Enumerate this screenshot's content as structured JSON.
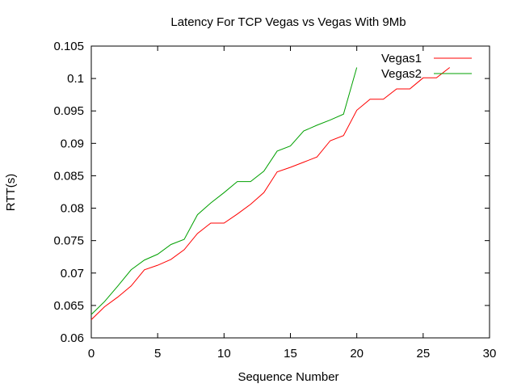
{
  "chart_data": {
    "type": "line",
    "title": "Latency For TCP Vegas vs Vegas With 9Mb",
    "xlabel": "Sequence Number",
    "ylabel": "RTT(s)",
    "xlim": [
      0,
      30
    ],
    "ylim": [
      0.06,
      0.105
    ],
    "xticks": [
      0,
      5,
      10,
      15,
      20,
      25,
      30
    ],
    "yticks": [
      0.06,
      0.065,
      0.07,
      0.075,
      0.08,
      0.085,
      0.09,
      0.095,
      0.1,
      0.105
    ],
    "xtick_labels": [
      "0",
      "5",
      "10",
      "15",
      "20",
      "25",
      "30"
    ],
    "ytick_labels": [
      "0.06",
      "0.065",
      "0.07",
      "0.075",
      "0.08",
      "0.085",
      "0.09",
      "0.095",
      "0.1",
      "0.105"
    ],
    "grid": false,
    "legend_position": "top-right",
    "series": [
      {
        "name": "Vegas1",
        "color": "#ff0000",
        "x": [
          0,
          1,
          2,
          3,
          4,
          5,
          6,
          7,
          8,
          9,
          10,
          11,
          12,
          13,
          14,
          15,
          16,
          17,
          18,
          19,
          20,
          21,
          22,
          23,
          24,
          25,
          26,
          27
        ],
        "y": [
          0.0628,
          0.0648,
          0.0663,
          0.068,
          0.0705,
          0.0712,
          0.0721,
          0.0736,
          0.0761,
          0.0777,
          0.0777,
          0.0791,
          0.0806,
          0.0824,
          0.0856,
          0.0863,
          0.0871,
          0.0879,
          0.0904,
          0.0912,
          0.0951,
          0.0968,
          0.0968,
          0.0984,
          0.0984,
          0.1001,
          0.1001,
          0.1017
        ]
      },
      {
        "name": "Vegas2",
        "color": "#00a000",
        "x": [
          0,
          1,
          2,
          3,
          4,
          5,
          6,
          7,
          8,
          9,
          10,
          11,
          12,
          13,
          14,
          15,
          16,
          17,
          18,
          19,
          20
        ],
        "y": [
          0.0636,
          0.0656,
          0.068,
          0.0705,
          0.072,
          0.0729,
          0.0744,
          0.0752,
          0.079,
          0.0808,
          0.0824,
          0.0841,
          0.0841,
          0.0857,
          0.0888,
          0.0896,
          0.0919,
          0.0928,
          0.0936,
          0.0945,
          0.1017
        ]
      }
    ]
  }
}
